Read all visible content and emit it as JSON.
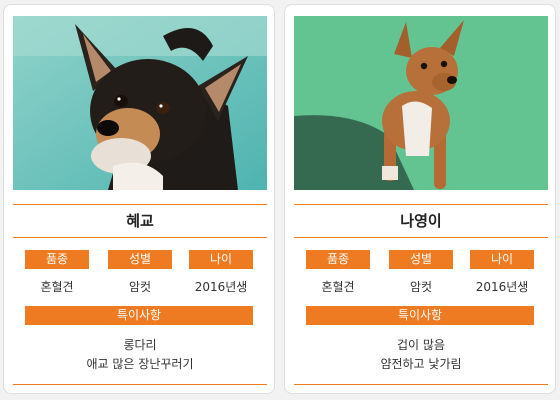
{
  "cards": [
    {
      "name": "혜교",
      "labels": {
        "breed": "품종",
        "sex": "성별",
        "age": "나이",
        "notes": "특이사항"
      },
      "values": {
        "breed": "혼혈견",
        "sex": "암컷",
        "age": "2016년생"
      },
      "notes": [
        "롱다리",
        "애교 많은 장난꾸러기"
      ]
    },
    {
      "name": "나영이",
      "labels": {
        "breed": "품종",
        "sex": "성별",
        "age": "나이",
        "notes": "특이사항"
      },
      "values": {
        "breed": "혼혈견",
        "sex": "암컷",
        "age": "2016년생"
      },
      "notes": [
        "겁이 많음",
        "얌전하고 낯가림"
      ]
    }
  ],
  "colors": {
    "accent": "#ee7b22",
    "divider": "#f07a1e",
    "card_bg": "#ffffff",
    "page_bg": "#f2f2f2"
  }
}
